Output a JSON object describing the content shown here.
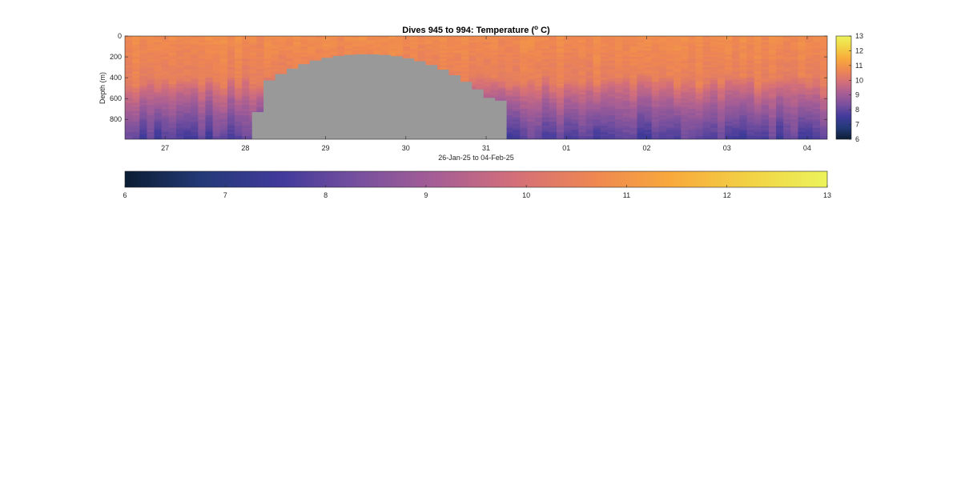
{
  "chart_data": {
    "type": "heatmap",
    "title_main": "Dives 945 to 994: Temperature (",
    "title_sup": "o",
    "title_end": " C)",
    "xlabel": "26-Jan-25 to 04-Feb-25",
    "ylabel": "Depth (m)",
    "x_range": [
      "2025-01-26T12:00",
      "2025-02-04T06:00"
    ],
    "x_ticks": [
      {
        "date": "2025-01-27",
        "label": "27"
      },
      {
        "date": "2025-01-28",
        "label": "28"
      },
      {
        "date": "2025-01-29",
        "label": "29"
      },
      {
        "date": "2025-01-30",
        "label": "30"
      },
      {
        "date": "2025-01-31",
        "label": "31"
      },
      {
        "date": "2025-02-01",
        "label": "01"
      },
      {
        "date": "2025-02-02",
        "label": "02"
      },
      {
        "date": "2025-02-03",
        "label": "03"
      },
      {
        "date": "2025-02-04",
        "label": "04"
      }
    ],
    "y_range": [
      0,
      990
    ],
    "y_ticks": [
      0,
      200,
      400,
      600,
      800
    ],
    "color_range": [
      6,
      13
    ],
    "colorbar_ticks": [
      6,
      7,
      8,
      9,
      10,
      11,
      12,
      13
    ],
    "colormap": [
      "#0b1d33",
      "#243a78",
      "#413a9b",
      "#78509e",
      "#a75e95",
      "#d46f79",
      "#ee8752",
      "#f8a93c",
      "#f2d245",
      "#ecf35b"
    ],
    "missing_color": "#999999",
    "surface_temp_c": 10.8,
    "gap_profile": [
      {
        "start": "2025-01-28T02:00",
        "end": "2025-01-28T19:00",
        "top_depth_m": 730
      },
      {
        "start": "2025-01-28T19:00",
        "end": "2025-01-29T09:00",
        "top_depth_m": 380
      },
      {
        "start": "2025-01-29T09:00",
        "end": "2025-01-30T02:00",
        "top_depth_m": 180
      },
      {
        "start": "2025-01-30T02:00",
        "end": "2025-01-30T19:00",
        "top_depth_m": 210
      },
      {
        "start": "2025-01-30T19:00",
        "end": "2025-01-31T03:00",
        "top_depth_m": 490
      },
      {
        "start": "2025-01-31T03:00",
        "end": "2025-01-31T06:00",
        "top_depth_m": 610
      }
    ]
  }
}
